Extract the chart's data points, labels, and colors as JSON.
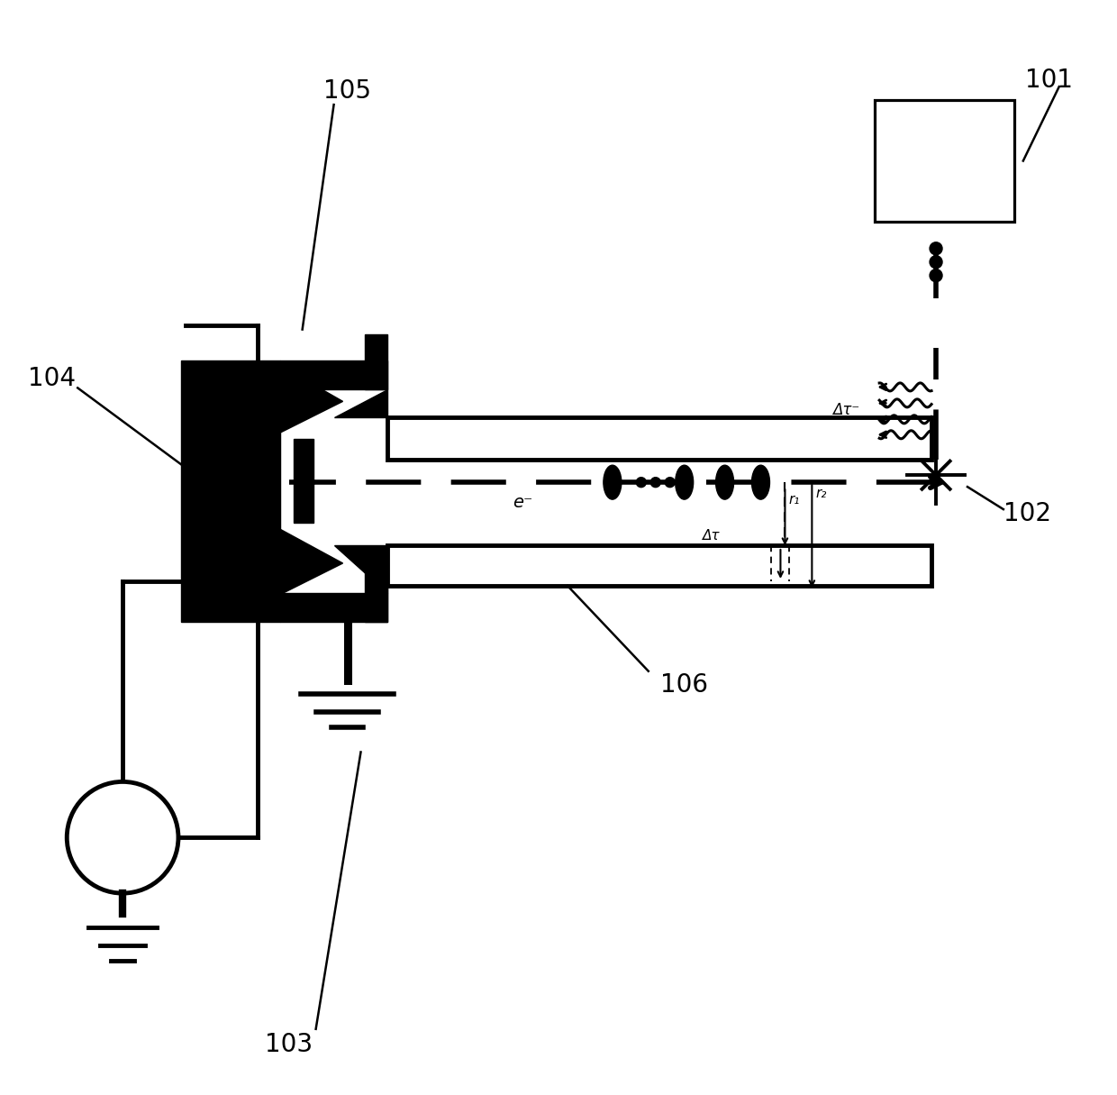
{
  "bg_color": "#ffffff",
  "label_101": "101",
  "label_102": "102",
  "label_103": "103",
  "label_104": "104",
  "label_105": "105",
  "label_106": "106",
  "label_e": "e⁻",
  "label_delta_tau": "Δτ",
  "label_delta_tau_minus": "Δτ⁻",
  "label_r1": "r₁",
  "label_r2": "r₂"
}
